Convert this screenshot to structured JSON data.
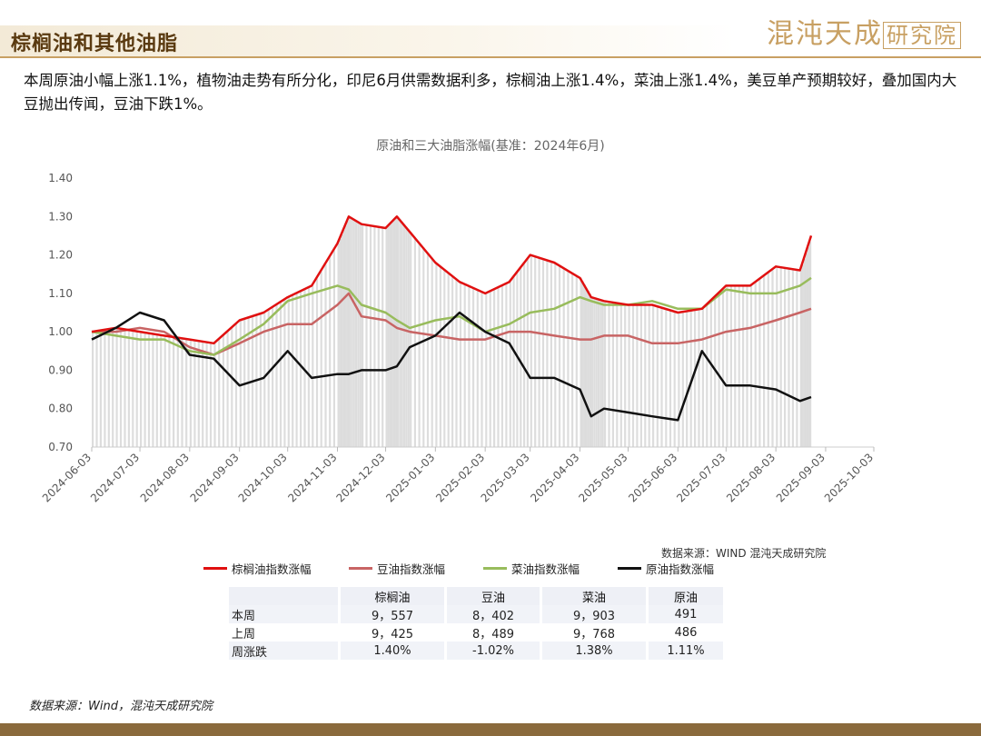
{
  "page_title": "棕榈油和其他油脂",
  "brand": {
    "text": "混沌天成",
    "boxed": "研究院"
  },
  "summary": "本周原油小幅上涨1.1%，植物油走势有所分化，印尼6月供需数据利多，棕榈油上涨1.4%，菜油上涨1.4%，美豆单产预期较好，叠加国内大豆抛出传闻，豆油下跌1%。",
  "source_label": "数据来源：WIND 混沌天成研究院",
  "footnote": "数据来源：Wind，混沌天成研究院",
  "colors": {
    "palm": "#e01010",
    "soy": "#c86464",
    "rapeseed": "#98bc5c",
    "crude": "#111111",
    "bars": "#d2d2d2"
  },
  "table": {
    "headers": [
      "",
      "棕榈油",
      "豆油",
      "菜油",
      "原油"
    ],
    "rows": [
      {
        "label": "本周",
        "cells": [
          "9，557",
          "8，402",
          "9，903",
          "491"
        ]
      },
      {
        "label": "上周",
        "cells": [
          "9，425",
          "8，489",
          "9，768",
          "486"
        ]
      },
      {
        "label": "周涨跌",
        "cells": [
          "1.40%",
          "-1.02%",
          "1.38%",
          "1.11%"
        ]
      }
    ]
  },
  "chart_data": {
    "type": "line",
    "title": "原油和三大油脂涨幅(基准：2024年6月)",
    "ylim": [
      0.7,
      1.4
    ],
    "yticks": [
      "1.40",
      "1.30",
      "1.20",
      "1.10",
      "1.00",
      "0.90",
      "0.80",
      "0.70"
    ],
    "xlim": [
      "2024-06-03",
      "2025-10-03"
    ],
    "xticks": [
      "2024-06-03",
      "2024-07-03",
      "2024-08-03",
      "2024-09-03",
      "2024-10-03",
      "2024-11-03",
      "2024-12-03",
      "2025-01-03",
      "2025-02-03",
      "2025-03-03",
      "2025-04-03",
      "2025-05-03",
      "2025-06-03",
      "2025-07-03",
      "2025-08-03",
      "2025-09-03",
      "2025-10-03"
    ],
    "x": [
      "2024-06-03",
      "2024-06-18",
      "2024-07-03",
      "2024-07-18",
      "2024-08-03",
      "2024-08-18",
      "2024-09-03",
      "2024-09-18",
      "2024-10-03",
      "2024-10-18",
      "2024-11-03",
      "2024-11-10",
      "2024-11-18",
      "2024-12-03",
      "2024-12-10",
      "2024-12-18",
      "2025-01-03",
      "2025-01-18",
      "2025-02-03",
      "2025-02-18",
      "2025-03-03",
      "2025-03-18",
      "2025-04-03",
      "2025-04-10",
      "2025-04-18",
      "2025-05-03",
      "2025-05-18",
      "2025-06-03",
      "2025-06-18",
      "2025-07-03",
      "2025-07-18",
      "2025-08-03",
      "2025-08-18",
      "2025-08-25"
    ],
    "series": [
      {
        "name": "棕榈油指数涨幅",
        "values": [
          1.0,
          1.01,
          1.0,
          0.99,
          0.98,
          0.97,
          1.03,
          1.05,
          1.09,
          1.12,
          1.23,
          1.3,
          1.28,
          1.27,
          1.3,
          1.26,
          1.18,
          1.13,
          1.1,
          1.13,
          1.2,
          1.18,
          1.14,
          1.09,
          1.08,
          1.07,
          1.07,
          1.05,
          1.06,
          1.12,
          1.12,
          1.17,
          1.16,
          1.25
        ]
      },
      {
        "name": "豆油指数涨幅",
        "values": [
          1.0,
          1.0,
          1.01,
          1.0,
          0.96,
          0.94,
          0.97,
          1.0,
          1.02,
          1.02,
          1.07,
          1.1,
          1.04,
          1.03,
          1.01,
          1.0,
          0.99,
          0.98,
          0.98,
          1.0,
          1.0,
          0.99,
          0.98,
          0.98,
          0.99,
          0.99,
          0.97,
          0.97,
          0.98,
          1.0,
          1.01,
          1.03,
          1.05,
          1.06
        ]
      },
      {
        "name": "菜油指数涨幅",
        "values": [
          1.0,
          0.99,
          0.98,
          0.98,
          0.95,
          0.94,
          0.98,
          1.02,
          1.08,
          1.1,
          1.12,
          1.11,
          1.07,
          1.05,
          1.03,
          1.01,
          1.03,
          1.04,
          1.0,
          1.02,
          1.05,
          1.06,
          1.09,
          1.08,
          1.07,
          1.07,
          1.08,
          1.06,
          1.06,
          1.11,
          1.1,
          1.1,
          1.12,
          1.14
        ]
      },
      {
        "name": "原油指数涨幅",
        "values": [
          0.98,
          1.01,
          1.05,
          1.03,
          0.94,
          0.93,
          0.86,
          0.88,
          0.95,
          0.88,
          0.89,
          0.89,
          0.9,
          0.9,
          0.91,
          0.96,
          0.99,
          1.05,
          1.0,
          0.97,
          0.88,
          0.88,
          0.85,
          0.78,
          0.8,
          0.79,
          0.78,
          0.77,
          0.95,
          0.86,
          0.86,
          0.85,
          0.82,
          0.83
        ]
      }
    ],
    "legend_position": "bottom",
    "grid": false
  }
}
